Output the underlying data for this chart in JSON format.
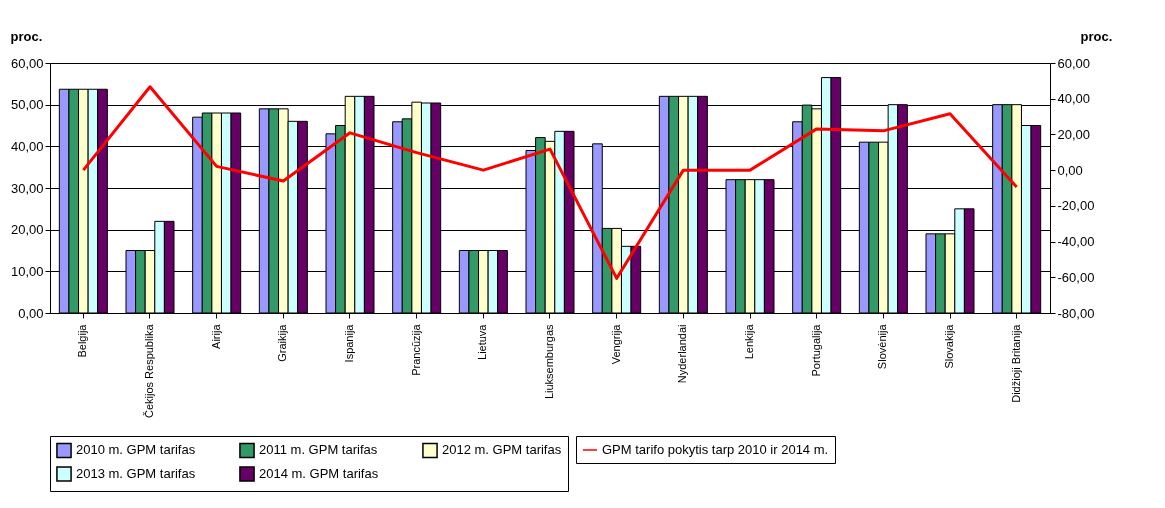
{
  "chart_data": {
    "type": "bar",
    "ylabel": "proc.",
    "y2label": "proc.",
    "categories": [
      "Belgija",
      "Čekijos Respublika",
      "Airija",
      "Graikija",
      "Ispanija",
      "Prancūzija",
      "Lietuva",
      "Liuksemburgas",
      "Vengrija",
      "Nyderlandai",
      "Lenkija",
      "Portugalija",
      "Slovėnija",
      "Slovakija",
      "Didžioji Britanija"
    ],
    "series": [
      {
        "name": "2010 m. GPM tarifas",
        "color": "#9999ff",
        "values": [
          53.7,
          15,
          47,
          49,
          43,
          45.9,
          15,
          39,
          40.6,
          52,
          32,
          45.9,
          41,
          19,
          50
        ]
      },
      {
        "name": "2011 m. GPM tarifas",
        "color": "#339966",
        "values": [
          53.7,
          15,
          48,
          49,
          45,
          46.6,
          15,
          42.1,
          20.3,
          52,
          32,
          49.9,
          41,
          19,
          50
        ]
      },
      {
        "name": "2012 m. GPM tarifas",
        "color": "#ffffcc",
        "values": [
          53.7,
          15,
          48,
          49,
          52,
          50.6,
          15,
          41.2,
          20.3,
          52,
          32,
          49,
          41,
          19,
          50
        ]
      },
      {
        "name": "2013 m. GPM tarifas",
        "color": "#ccffff",
        "values": [
          53.7,
          22,
          48,
          46,
          52,
          50.4,
          15,
          43.6,
          16,
          52,
          32,
          56.5,
          50,
          25,
          45
        ]
      },
      {
        "name": "2014 m. GPM tarifas",
        "color": "#660066",
        "values": [
          53.7,
          22,
          48,
          46,
          52,
          50.4,
          15,
          43.6,
          16,
          52,
          32,
          56.5,
          50,
          25,
          45
        ]
      },
      {
        "name": "GPM tarifo pokytis tarp 2010 ir 2014 m.",
        "type": "line",
        "axis": "y2",
        "color": "#ff0000",
        "values": [
          0,
          46.7,
          2.1,
          -6.1,
          20.9,
          9.8,
          0,
          11.8,
          -60.6,
          0,
          0,
          23.1,
          22,
          31.6,
          -9.5
        ]
      }
    ],
    "ylim": [
      0,
      60
    ],
    "yticks": [
      {
        "value": 0,
        "label": "0,00"
      },
      {
        "value": 10,
        "label": "10,00"
      },
      {
        "value": 20,
        "label": "20,00"
      },
      {
        "value": 30,
        "label": "30,00"
      },
      {
        "value": 40,
        "label": "40,00"
      },
      {
        "value": 50,
        "label": "50,00"
      },
      {
        "value": 60,
        "label": "60,00"
      }
    ],
    "y2lim": [
      -80,
      60
    ],
    "y2ticks": [
      {
        "value": -80,
        "label": "-80,00"
      },
      {
        "value": -60,
        "label": "-60,00"
      },
      {
        "value": -40,
        "label": "-40,00"
      },
      {
        "value": -20,
        "label": "-20,00"
      },
      {
        "value": 0,
        "label": "0,00"
      },
      {
        "value": 20,
        "label": "20,00"
      },
      {
        "value": 40,
        "label": "40,00"
      },
      {
        "value": 60,
        "label": "60,00"
      }
    ],
    "grid": "y",
    "legend": "bottom"
  }
}
